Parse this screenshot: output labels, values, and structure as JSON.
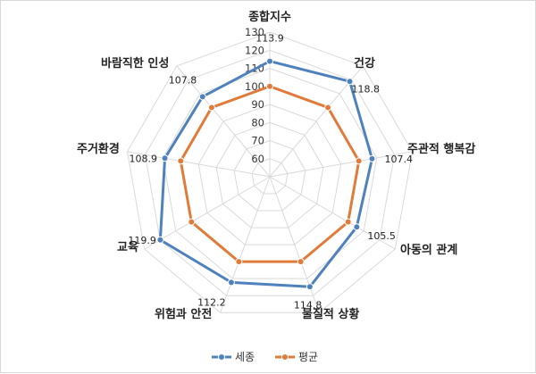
{
  "chart_data": {
    "type": "radar",
    "categories": [
      "종합지수",
      "건강",
      "주관적 행복감",
      "아동의 관계",
      "물질적 상황",
      "위험과 안전",
      "교육",
      "주거환경",
      "바람직한 인성"
    ],
    "series": [
      {
        "name": "세종",
        "values": [
          113.9,
          118.8,
          107.4,
          105.5,
          114.8,
          112.2,
          119.9,
          108.9,
          107.8
        ],
        "color": "#4f81bd"
      },
      {
        "name": "평균",
        "values": [
          100,
          100,
          100,
          100,
          100,
          100,
          100,
          100,
          100
        ],
        "color": "#e07b39"
      }
    ],
    "value_labels": [
      "113.9",
      "118.8",
      "107.4",
      "105.5",
      "114.8",
      "112.2",
      "119.9",
      "108.9",
      "107.8"
    ],
    "r_ticks": [
      60,
      70,
      80,
      90,
      100,
      110,
      120,
      130
    ],
    "r_tick_labels": [
      "60",
      "70",
      "80",
      "90",
      "100",
      "110",
      "120",
      "130"
    ],
    "r_range": [
      50,
      130
    ],
    "grid": true,
    "legend_position": "bottom"
  }
}
